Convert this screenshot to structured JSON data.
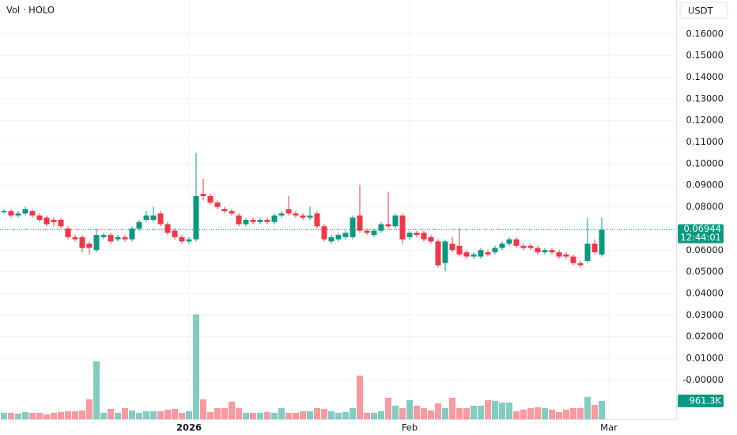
{
  "chart_data": {
    "type": "candlestick",
    "title": "Vol · HOLO",
    "currency": "USDT",
    "countdown": "12:44:01",
    "up_color": "#089981",
    "down_color": "#f23645",
    "grid": true,
    "categories": [
      null,
      null,
      null,
      null,
      null,
      null,
      null,
      null,
      null,
      null,
      null,
      null,
      null,
      null,
      null,
      null,
      null,
      null,
      null,
      null,
      null,
      null,
      null,
      null,
      null,
      null,
      "2026",
      null,
      null,
      null,
      null,
      null,
      null,
      null,
      null,
      null,
      null,
      null,
      null,
      null,
      null,
      null,
      null,
      null,
      null,
      null,
      null,
      null,
      null,
      null,
      null,
      null,
      null,
      null,
      null,
      null,
      null,
      "Feb",
      null,
      null,
      null,
      null,
      null,
      null,
      null,
      null,
      null,
      null,
      null,
      null,
      null,
      null,
      null,
      null,
      null,
      null,
      null,
      null,
      null,
      null,
      null,
      null,
      null,
      null,
      null,
      "Mar"
    ],
    "open": [
      0.0775,
      0.078,
      0.076,
      0.077,
      0.078,
      0.076,
      0.075,
      0.074,
      0.074,
      0.07,
      0.066,
      0.066,
      0.063,
      0.06,
      0.066,
      0.067,
      0.065,
      0.066,
      0.065,
      0.07,
      0.074,
      0.074,
      0.077,
      0.072,
      0.069,
      0.066,
      0.064,
      0.065,
      0.086,
      0.085,
      0.082,
      0.079,
      0.078,
      0.076,
      0.072,
      0.074,
      0.073,
      0.074,
      0.073,
      0.076,
      0.079,
      0.077,
      0.076,
      0.075,
      0.077,
      0.071,
      0.064,
      0.065,
      0.066,
      0.066,
      0.076,
      0.069,
      0.067,
      0.069,
      0.072,
      0.071,
      0.076,
      0.066,
      0.068,
      0.068,
      0.066,
      0.064,
      0.054,
      0.063,
      0.062,
      0.059,
      0.057,
      0.057,
      0.059,
      0.059,
      0.061,
      0.063,
      0.065,
      0.062,
      0.062,
      0.061,
      0.059,
      0.06,
      0.059,
      0.058,
      0.057,
      0.054,
      0.055,
      0.063,
      0.058,
      null
    ],
    "high": [
      0.079,
      0.079,
      0.078,
      0.08,
      0.079,
      0.077,
      0.076,
      0.075,
      0.075,
      0.071,
      0.067,
      0.067,
      0.064,
      0.07,
      0.068,
      0.068,
      0.067,
      0.067,
      0.071,
      0.074,
      0.078,
      0.08,
      0.078,
      0.073,
      0.07,
      0.067,
      0.066,
      0.105,
      0.093,
      0.086,
      0.083,
      0.08,
      0.079,
      0.077,
      0.075,
      0.075,
      0.075,
      0.075,
      0.077,
      0.078,
      0.085,
      0.078,
      0.077,
      0.08,
      0.078,
      0.072,
      0.067,
      0.068,
      0.069,
      0.076,
      0.09,
      0.07,
      0.07,
      0.073,
      0.087,
      0.077,
      0.077,
      0.069,
      0.069,
      0.069,
      0.067,
      0.065,
      0.065,
      0.066,
      0.07,
      0.06,
      0.059,
      0.061,
      0.06,
      0.062,
      0.064,
      0.066,
      0.066,
      0.063,
      0.063,
      0.062,
      0.061,
      0.061,
      0.06,
      0.059,
      0.058,
      0.055,
      0.075,
      0.065,
      0.075,
      null
    ],
    "low": [
      0.077,
      0.075,
      0.075,
      0.076,
      0.075,
      0.073,
      0.071,
      0.071,
      0.07,
      0.065,
      0.064,
      0.059,
      0.058,
      0.059,
      0.065,
      0.063,
      0.064,
      0.064,
      0.064,
      0.069,
      0.073,
      0.073,
      0.071,
      0.067,
      0.065,
      0.063,
      0.063,
      0.064,
      0.083,
      0.081,
      0.079,
      0.077,
      0.076,
      0.071,
      0.071,
      0.072,
      0.072,
      0.072,
      0.072,
      0.075,
      0.076,
      0.075,
      0.074,
      0.074,
      0.07,
      0.064,
      0.063,
      0.064,
      0.065,
      0.065,
      0.068,
      0.067,
      0.066,
      0.068,
      0.07,
      0.07,
      0.063,
      0.065,
      0.066,
      0.064,
      0.063,
      0.052,
      0.05,
      0.059,
      0.057,
      0.056,
      0.056,
      0.056,
      0.057,
      0.058,
      0.06,
      0.062,
      0.061,
      0.06,
      0.06,
      0.058,
      0.058,
      0.058,
      0.056,
      0.056,
      0.053,
      0.052,
      0.054,
      0.058,
      0.057,
      null
    ],
    "close": [
      0.078,
      0.076,
      0.077,
      0.079,
      0.076,
      0.074,
      0.072,
      0.073,
      0.071,
      0.066,
      0.065,
      0.061,
      0.061,
      0.067,
      0.067,
      0.064,
      0.066,
      0.065,
      0.07,
      0.073,
      0.076,
      0.076,
      0.072,
      0.068,
      0.066,
      0.064,
      0.065,
      0.085,
      0.085,
      0.082,
      0.08,
      0.078,
      0.077,
      0.072,
      0.074,
      0.073,
      0.074,
      0.073,
      0.076,
      0.077,
      0.077,
      0.076,
      0.075,
      0.076,
      0.071,
      0.065,
      0.066,
      0.067,
      0.068,
      0.075,
      0.069,
      0.068,
      0.069,
      0.072,
      0.071,
      0.076,
      0.065,
      0.068,
      0.067,
      0.065,
      0.064,
      0.053,
      0.064,
      0.06,
      0.058,
      0.057,
      0.058,
      0.06,
      0.058,
      0.061,
      0.063,
      0.065,
      0.062,
      0.061,
      0.061,
      0.059,
      0.06,
      0.059,
      0.057,
      0.057,
      0.054,
      0.053,
      0.063,
      0.059,
      0.06944,
      null
    ],
    "volume": [
      334400,
      334400,
      292600,
      376200,
      334400,
      334400,
      250800,
      334400,
      376200,
      418000,
      418000,
      459800,
      1045000,
      3051400,
      334400,
      543400,
      334400,
      585200,
      459800,
      334400,
      418000,
      418000,
      418000,
      501600,
      543400,
      334400,
      418000,
      5517600,
      1045000,
      376200,
      585200,
      585200,
      919600,
      585200,
      334400,
      334400,
      334400,
      376200,
      334400,
      585200,
      334400,
      334400,
      418000,
      418000,
      585200,
      543400,
      418000,
      334400,
      376200,
      585200,
      2299000,
      334400,
      334400,
      418000,
      1128600,
      710600,
      585200,
      1003200,
      710600,
      585200,
      459800,
      836000,
      585200,
      1128600,
      585200,
      585200,
      710600,
      710600,
      1003200,
      961300,
      877800,
      877800,
      418000,
      501600,
      585200,
      627000,
      585200,
      501600,
      376200,
      501600,
      585200,
      585200,
      1170400,
      752400,
      961300,
      null
    ],
    "volume_last_label": "961.3K",
    "volume_ylim": [
      0,
      22070000
    ],
    "ylim": [
      -0.0182,
      0.1757
    ],
    "yticks": [
      {
        "value": 0.16,
        "label": "0.16000"
      },
      {
        "value": 0.15,
        "label": "0.15000"
      },
      {
        "value": 0.14,
        "label": "0.14000"
      },
      {
        "value": 0.13,
        "label": "0.13000"
      },
      {
        "value": 0.12,
        "label": "0.12000"
      },
      {
        "value": 0.11,
        "label": "0.11000"
      },
      {
        "value": 0.1,
        "label": "0.10000"
      },
      {
        "value": 0.09,
        "label": "0.09000"
      },
      {
        "value": 0.08,
        "label": "0.08000"
      },
      {
        "value": 0.07,
        "label": "0.07000"
      },
      {
        "value": 0.06,
        "label": "0.06000"
      },
      {
        "value": 0.05,
        "label": "0.05000"
      },
      {
        "value": 0.04,
        "label": "0.04000"
      },
      {
        "value": 0.03,
        "label": "0.03000"
      },
      {
        "value": 0.02,
        "label": "0.02000"
      },
      {
        "value": 0.01,
        "label": "0.01000"
      },
      {
        "value": 0,
        "label": "-0.00000"
      }
    ]
  }
}
